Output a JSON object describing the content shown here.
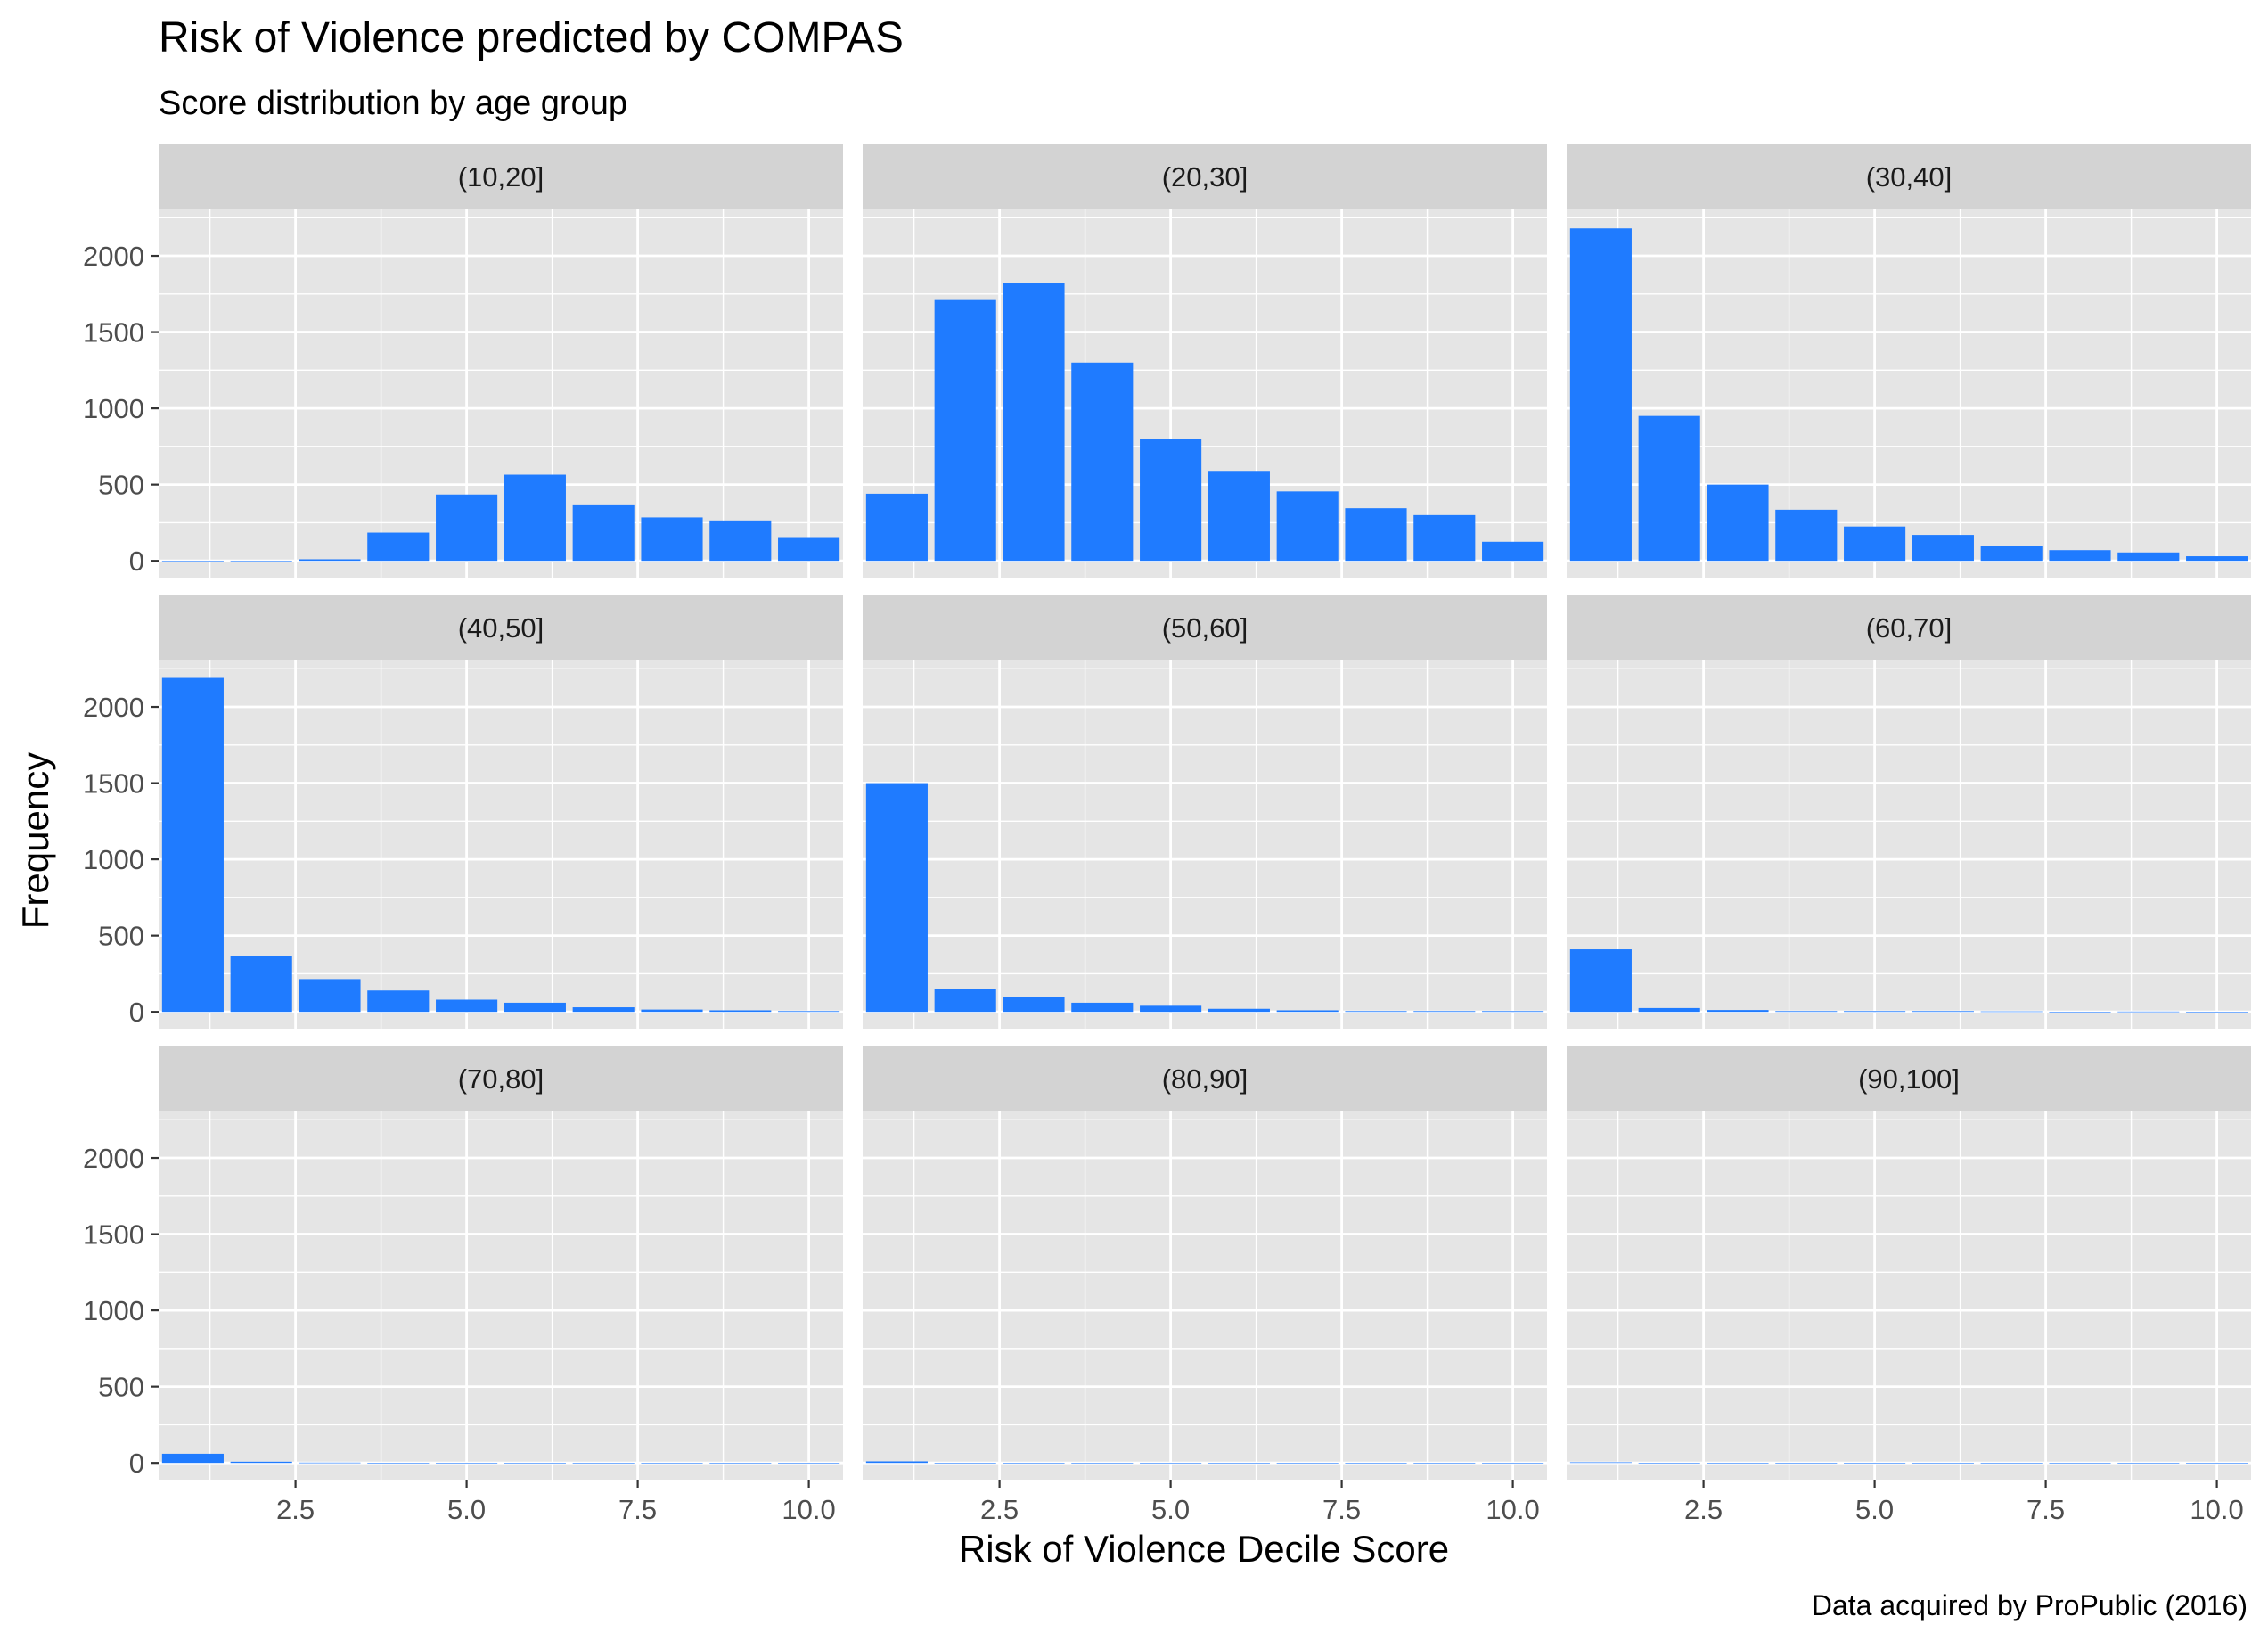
{
  "chart_data": {
    "type": "bar",
    "title": "Risk of Violence predicted by COMPAS",
    "subtitle": "Score distribution by age group",
    "xlabel": "Risk of Violence Decile Score",
    "ylabel": "Frequency",
    "caption": "Data acquired by ProPublic (2016)",
    "x": [
      1,
      2,
      3,
      4,
      5,
      6,
      7,
      8,
      9,
      10
    ],
    "xlim": [
      0.5,
      10.5
    ],
    "ylim": [
      -110,
      2310
    ],
    "x_ticks": [
      2.5,
      5.0,
      7.5,
      10.0
    ],
    "x_tick_labels": [
      "2.5",
      "5.0",
      "7.5",
      "10.0"
    ],
    "y_ticks": [
      0,
      500,
      1000,
      1500,
      2000
    ],
    "y_tick_labels": [
      "0",
      "500",
      "1000",
      "1500",
      "2000"
    ],
    "grid": true,
    "facet_layout": "3x3",
    "colors": {
      "bar": "#1F7BFF",
      "panel_bg": "#E5E5E5",
      "strip_bg": "#D3D3D3",
      "grid": "#FFFFFF",
      "text": "#1A1A1A",
      "tick_text": "#4D4D4D"
    },
    "facets": [
      {
        "label": "(10,20]",
        "values": [
          0,
          0,
          10,
          185,
          435,
          565,
          370,
          285,
          265,
          150
        ]
      },
      {
        "label": "(20,30]",
        "values": [
          440,
          1710,
          1820,
          1300,
          800,
          590,
          455,
          345,
          300,
          125
        ]
      },
      {
        "label": "(30,40]",
        "values": [
          2180,
          950,
          500,
          335,
          225,
          170,
          100,
          70,
          55,
          30
        ]
      },
      {
        "label": "(40,50]",
        "values": [
          2190,
          365,
          215,
          140,
          80,
          60,
          30,
          15,
          10,
          5
        ]
      },
      {
        "label": "(50,60]",
        "values": [
          1500,
          150,
          100,
          60,
          40,
          20,
          10,
          5,
          5,
          5
        ]
      },
      {
        "label": "(60,70]",
        "values": [
          410,
          25,
          12,
          5,
          5,
          5,
          3,
          0,
          2,
          0
        ]
      },
      {
        "label": "(70,80]",
        "values": [
          60,
          8,
          2,
          0,
          0,
          0,
          0,
          0,
          0,
          0
        ]
      },
      {
        "label": "(80,90]",
        "values": [
          10,
          1,
          0,
          0,
          0,
          0,
          0,
          0,
          0,
          0
        ]
      },
      {
        "label": "(90,100]",
        "values": [
          4,
          0,
          0,
          0,
          0,
          0,
          0,
          0,
          0,
          0
        ]
      }
    ]
  }
}
